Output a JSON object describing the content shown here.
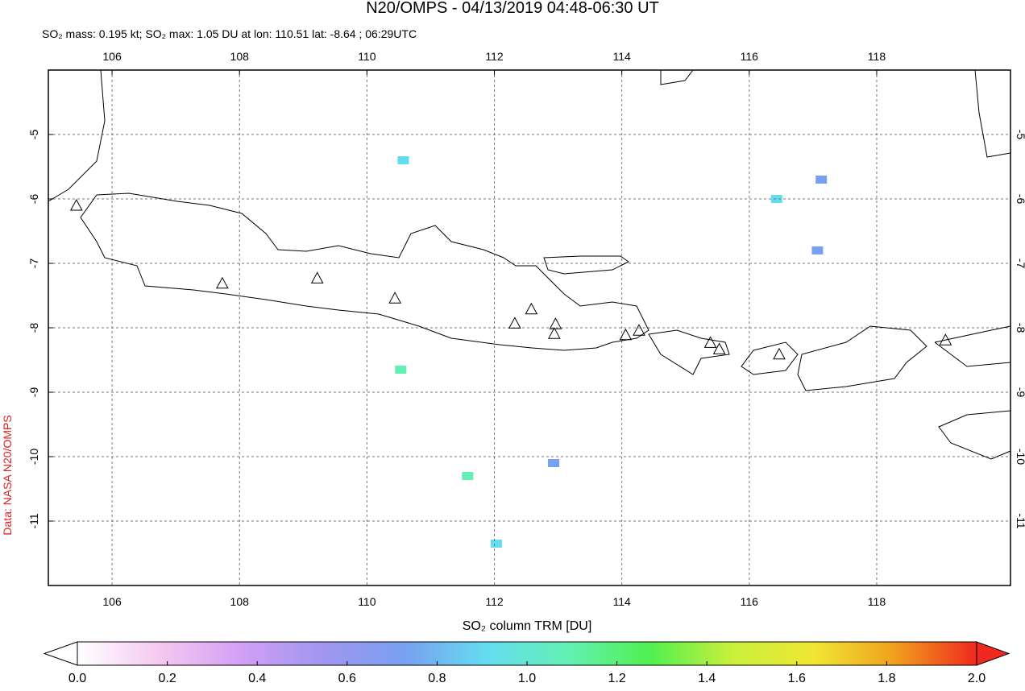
{
  "chart_data": {
    "type": "map",
    "title": "N20/OMPS - 04/13/2019 04:48-06:30 UT",
    "subtitle": "SO₂ mass: 0.195 kt; SO₂ max: 1.05 DU at lon: 110.51 lat: -8.64 ; 06:29UTC",
    "credit": "Data: NASA N20/OMPS",
    "xlim": [
      105,
      120.1
    ],
    "ylim": [
      -12,
      -4
    ],
    "xticks": [
      106,
      108,
      110,
      112,
      114,
      116,
      118
    ],
    "yticks": [
      -5,
      -6,
      -7,
      -8,
      -9,
      -10,
      -11
    ],
    "grid": true,
    "volcanoes": {
      "lon": [
        105.44,
        107.73,
        109.22,
        110.44,
        112.32,
        112.58,
        112.96,
        112.94,
        114.06,
        114.27,
        115.39,
        115.53,
        116.47,
        119.08
      ],
      "lat": [
        -6.1,
        -7.31,
        -7.23,
        -7.54,
        -7.93,
        -7.71,
        -7.94,
        -8.09,
        -8.11,
        -8.04,
        -8.23,
        -8.33,
        -8.41,
        -8.19
      ]
    },
    "pixels": {
      "lon": [
        110.53,
        110.57,
        111.58,
        112.03,
        116.43,
        117.13,
        117.07,
        112.93
      ],
      "lat": [
        -8.65,
        -5.4,
        -10.3,
        -11.35,
        -6.0,
        -5.7,
        -6.8,
        -10.1
      ],
      "values": [
        1.05,
        0.85,
        1.0,
        0.95,
        0.95,
        0.7,
        0.65,
        0.65
      ]
    },
    "colorbar": {
      "label": "SO₂ column TRM [DU]",
      "lim": [
        0,
        2
      ],
      "ticks": [
        {
          "value": 0,
          "label": "0.0"
        },
        {
          "value": 0.2,
          "label": "0.2"
        },
        {
          "value": 0.4,
          "label": "0.4"
        },
        {
          "value": 0.6,
          "label": "0.6"
        },
        {
          "value": 0.8,
          "label": "0.8"
        },
        {
          "value": 1,
          "label": "1.0"
        },
        {
          "value": 1.2,
          "label": "1.2"
        },
        {
          "value": 1.4,
          "label": "1.4"
        },
        {
          "value": 1.6,
          "label": "1.6"
        },
        {
          "value": 1.8,
          "label": "1.8"
        },
        {
          "value": 2,
          "label": "2.0"
        }
      ],
      "colors": [
        "#ffffff",
        "#f5c8f0",
        "#d2a0f5",
        "#a096f0",
        "#78a0f0",
        "#64dcf0",
        "#64f0b4",
        "#50f050",
        "#c8f03c",
        "#f0e632",
        "#f0a01e",
        "#f0281e"
      ]
    }
  }
}
